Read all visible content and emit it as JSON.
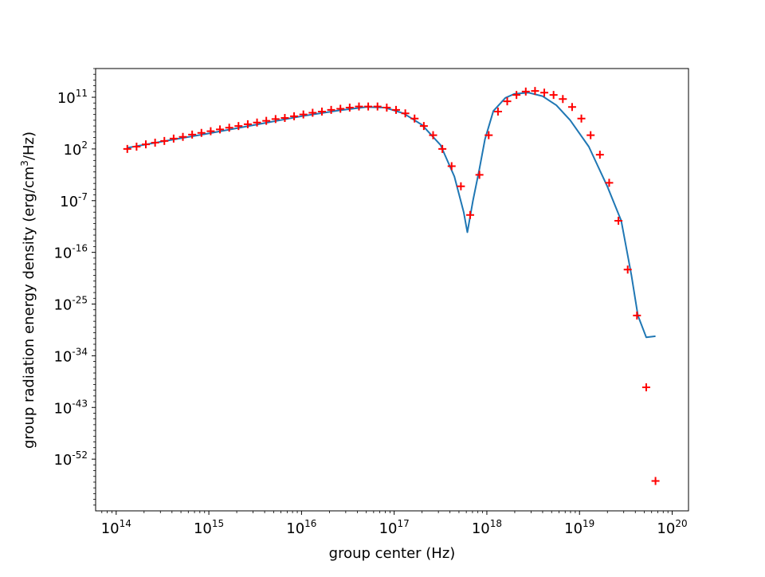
{
  "chart_data": {
    "type": "scatter",
    "title": "",
    "xlabel": "group center (Hz)",
    "ylabel": "group radiation energy density (erg/cm³/Hz)",
    "ylabel_parts": [
      "group radiation energy density (erg/cm",
      "3",
      "/Hz)"
    ],
    "xscale": "log",
    "yscale": "log",
    "xlim": [
      60000000000000.0,
      1.5e+20
    ],
    "ylim": [
      1e-61,
      1e+16
    ],
    "x_ticks": [
      {
        "value": 100000000000000.0,
        "base": "10",
        "exp": "14"
      },
      {
        "value": 1000000000000000.0,
        "base": "10",
        "exp": "15"
      },
      {
        "value": 1e+16,
        "base": "10",
        "exp": "16"
      },
      {
        "value": 1e+17,
        "base": "10",
        "exp": "17"
      },
      {
        "value": 1e+18,
        "base": "10",
        "exp": "18"
      },
      {
        "value": 1e+19,
        "base": "10",
        "exp": "19"
      },
      {
        "value": 1e+20,
        "base": "10",
        "exp": "20"
      }
    ],
    "y_ticks": [
      {
        "value": 100000000000.0,
        "base": "10",
        "exp": "11"
      },
      {
        "value": 100.0,
        "base": "10",
        "exp": "2"
      },
      {
        "value": 1e-07,
        "base": "10",
        "exp": "-7"
      },
      {
        "value": 1e-16,
        "base": "10",
        "exp": "-16"
      },
      {
        "value": 1e-25,
        "base": "10",
        "exp": "-25"
      },
      {
        "value": 1e-34,
        "base": "10",
        "exp": "-34"
      },
      {
        "value": 1e-43,
        "base": "10",
        "exp": "-43"
      },
      {
        "value": 1e-52,
        "base": "10",
        "exp": "-52"
      }
    ],
    "grid": false,
    "legend": "none",
    "series": [
      {
        "kind": "line",
        "color": "#1f77b4",
        "log10_x": [
          14.12,
          14.5,
          15.0,
          15.5,
          16.0,
          16.4,
          16.7,
          16.9,
          17.1,
          17.3,
          17.5,
          17.65,
          17.75,
          17.79,
          17.85,
          17.92,
          17.98,
          18.07,
          18.2,
          18.3,
          18.45,
          18.6,
          18.75,
          18.9,
          19.1,
          19.3,
          19.45,
          19.56,
          19.63,
          19.72,
          19.82
        ],
        "log10_y": [
          2.2,
          3.3,
          4.7,
          6.2,
          7.7,
          8.7,
          9.3,
          9.2,
          8.2,
          6.2,
          2.7,
          -2.8,
          -9.0,
          -12.5,
          -7.0,
          -1.5,
          3.7,
          8.6,
          10.9,
          11.6,
          11.8,
          11.2,
          9.6,
          7.0,
          2.4,
          -4.5,
          -10.5,
          -20.0,
          -27.0,
          -30.8,
          -30.6
        ]
      },
      {
        "kind": "scatter",
        "marker": "+",
        "color": "#ff0000",
        "log10_x": [
          14.12,
          14.22,
          14.32,
          14.42,
          14.52,
          14.62,
          14.72,
          14.82,
          14.92,
          15.02,
          15.12,
          15.22,
          15.32,
          15.42,
          15.52,
          15.62,
          15.72,
          15.82,
          15.92,
          16.02,
          16.12,
          16.22,
          16.32,
          16.42,
          16.52,
          16.62,
          16.72,
          16.82,
          16.92,
          17.02,
          17.12,
          17.22,
          17.32,
          17.42,
          17.52,
          17.62,
          17.72,
          17.82,
          17.92,
          18.02,
          18.12,
          18.22,
          18.32,
          18.42,
          18.52,
          18.62,
          18.72,
          18.82,
          18.92,
          19.02,
          19.12,
          19.22,
          19.32,
          19.42,
          19.52,
          19.62,
          19.72,
          19.82
        ],
        "log10_y": [
          2.0,
          2.4,
          2.8,
          3.1,
          3.4,
          3.8,
          4.1,
          4.5,
          4.8,
          5.1,
          5.4,
          5.7,
          6.0,
          6.3,
          6.6,
          6.9,
          7.2,
          7.4,
          7.7,
          8.0,
          8.3,
          8.5,
          8.8,
          9.0,
          9.2,
          9.4,
          9.4,
          9.4,
          9.2,
          8.8,
          8.2,
          7.3,
          6.0,
          4.4,
          2.0,
          -1.0,
          -4.5,
          -9.5,
          -2.5,
          4.4,
          8.5,
          10.3,
          11.4,
          12.0,
          12.1,
          11.8,
          11.4,
          10.7,
          9.3,
          7.3,
          4.4,
          1.0,
          -3.9,
          -10.5,
          -19.0,
          -27.0,
          -39.5,
          -55.8
        ]
      }
    ]
  }
}
